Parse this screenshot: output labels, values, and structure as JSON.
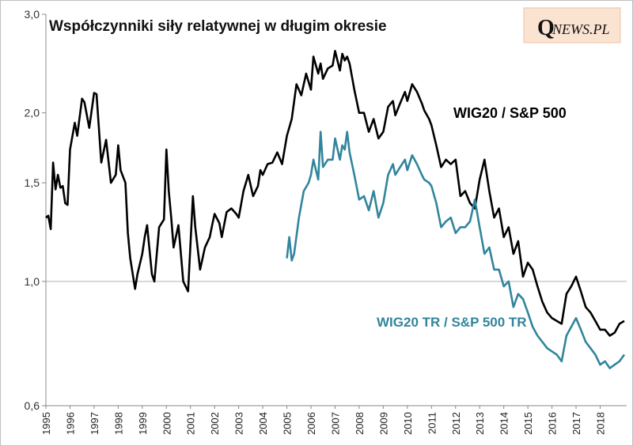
{
  "chart_data": {
    "type": "line",
    "title": "Współczynniki siły relatywnej w długim okresie",
    "xlabel": "",
    "ylabel": "",
    "y_scale": "log",
    "ylim": [
      0.6,
      3.0
    ],
    "xlim": [
      1995,
      2019.1
    ],
    "y_ticks": [
      {
        "value": 3.0,
        "label": "3,0"
      },
      {
        "value": 2.0,
        "label": "2,0"
      },
      {
        "value": 1.5,
        "label": "1,5"
      },
      {
        "value": 1.0,
        "label": "1,0"
      },
      {
        "value": 0.6,
        "label": "0,6"
      }
    ],
    "x_ticks": [
      "1995",
      "1996",
      "1997",
      "1998",
      "1999",
      "2000",
      "2001",
      "2002",
      "2003",
      "2004",
      "2005",
      "2006",
      "2007",
      "2008",
      "2009",
      "2010",
      "2011",
      "2012",
      "2013",
      "2014",
      "2015",
      "2016",
      "2017",
      "2018"
    ],
    "gridlines": [
      1.0
    ],
    "series": [
      {
        "name": "WIG20 / S&P 500",
        "color": "#000000",
        "x": [
          1995.0,
          1995.1,
          1995.2,
          1995.3,
          1995.4,
          1995.5,
          1995.6,
          1995.7,
          1995.8,
          1995.9,
          1996.0,
          1996.2,
          1996.3,
          1996.5,
          1996.6,
          1996.8,
          1997.0,
          1997.1,
          1997.3,
          1997.5,
          1997.7,
          1997.9,
          1998.0,
          1998.1,
          1998.3,
          1998.4,
          1998.5,
          1998.7,
          1998.8,
          1999.0,
          1999.1,
          1999.2,
          1999.4,
          1999.5,
          1999.7,
          1999.9,
          2000.0,
          2000.1,
          2000.2,
          2000.3,
          2000.5,
          2000.7,
          2000.9,
          2001.1,
          2001.2,
          2001.4,
          2001.6,
          2001.8,
          2001.9,
          2002.0,
          2002.2,
          2002.3,
          2002.5,
          2002.7,
          2002.9,
          2003.0,
          2003.2,
          2003.4,
          2003.6,
          2003.8,
          2003.9,
          2004.0,
          2004.2,
          2004.4,
          2004.6,
          2004.8,
          2005.0,
          2005.2,
          2005.4,
          2005.6,
          2005.8,
          2006.0,
          2006.1,
          2006.3,
          2006.4,
          2006.5,
          2006.7,
          2006.9,
          2007.0,
          2007.2,
          2007.3,
          2007.4,
          2007.5,
          2007.6,
          2007.8,
          2008.0,
          2008.2,
          2008.4,
          2008.6,
          2008.8,
          2009.0,
          2009.2,
          2009.4,
          2009.5,
          2009.7,
          2009.9,
          2010.0,
          2010.2,
          2010.4,
          2010.6,
          2010.7,
          2010.9,
          2011.0,
          2011.2,
          2011.4,
          2011.6,
          2011.8,
          2012.0,
          2012.2,
          2012.4,
          2012.6,
          2012.8,
          2013.0,
          2013.2,
          2013.4,
          2013.6,
          2013.8,
          2014.0,
          2014.2,
          2014.4,
          2014.6,
          2014.8,
          2015.0,
          2015.2,
          2015.4,
          2015.6,
          2015.8,
          2016.0,
          2016.2,
          2016.4,
          2016.6,
          2016.8,
          2017.0,
          2017.2,
          2017.4,
          2017.6,
          2017.8,
          2018.0,
          2018.2,
          2018.4,
          2018.6,
          2018.8,
          2019.0
        ],
        "values": [
          1.3,
          1.31,
          1.24,
          1.63,
          1.46,
          1.55,
          1.47,
          1.48,
          1.38,
          1.37,
          1.72,
          1.92,
          1.82,
          2.12,
          2.09,
          1.88,
          2.17,
          2.16,
          1.63,
          1.79,
          1.5,
          1.55,
          1.75,
          1.58,
          1.5,
          1.22,
          1.1,
          0.97,
          1.03,
          1.12,
          1.2,
          1.26,
          1.03,
          1.0,
          1.25,
          1.29,
          1.72,
          1.45,
          1.3,
          1.15,
          1.26,
          1.0,
          0.96,
          1.42,
          1.25,
          1.05,
          1.15,
          1.2,
          1.26,
          1.32,
          1.27,
          1.2,
          1.33,
          1.35,
          1.32,
          1.3,
          1.45,
          1.55,
          1.42,
          1.48,
          1.58,
          1.55,
          1.62,
          1.63,
          1.7,
          1.62,
          1.82,
          1.95,
          2.25,
          2.15,
          2.35,
          2.2,
          2.52,
          2.35,
          2.45,
          2.3,
          2.4,
          2.43,
          2.58,
          2.38,
          2.55,
          2.48,
          2.52,
          2.45,
          2.2,
          2.0,
          2.0,
          1.85,
          1.95,
          1.8,
          1.85,
          2.05,
          2.1,
          1.98,
          2.08,
          2.18,
          2.1,
          2.25,
          2.18,
          2.08,
          2.02,
          1.95,
          1.9,
          1.75,
          1.6,
          1.65,
          1.62,
          1.65,
          1.42,
          1.45,
          1.38,
          1.35,
          1.52,
          1.65,
          1.45,
          1.3,
          1.35,
          1.2,
          1.25,
          1.12,
          1.18,
          1.02,
          1.08,
          1.05,
          0.98,
          0.92,
          0.88,
          0.86,
          0.85,
          0.84,
          0.95,
          0.98,
          1.02,
          0.96,
          0.9,
          0.88,
          0.85,
          0.82,
          0.82,
          0.8,
          0.81,
          0.84,
          0.85
        ],
        "label": "WIG20 / S&P 500"
      },
      {
        "name": "WIG20 TR / S&P 500 TR",
        "color": "#31859c",
        "x": [
          2005.0,
          2005.1,
          2005.2,
          2005.3,
          2005.5,
          2005.7,
          2005.9,
          2006.0,
          2006.1,
          2006.3,
          2006.4,
          2006.5,
          2006.7,
          2006.9,
          2007.0,
          2007.2,
          2007.3,
          2007.4,
          2007.5,
          2007.6,
          2007.8,
          2008.0,
          2008.2,
          2008.4,
          2008.6,
          2008.8,
          2009.0,
          2009.2,
          2009.4,
          2009.5,
          2009.7,
          2009.9,
          2010.0,
          2010.2,
          2010.4,
          2010.6,
          2010.7,
          2010.9,
          2011.0,
          2011.2,
          2011.4,
          2011.6,
          2011.8,
          2012.0,
          2012.2,
          2012.4,
          2012.6,
          2012.8,
          2013.0,
          2013.2,
          2013.4,
          2013.6,
          2013.8,
          2014.0,
          2014.2,
          2014.4,
          2014.6,
          2014.8,
          2015.0,
          2015.2,
          2015.4,
          2015.6,
          2015.8,
          2016.0,
          2016.2,
          2016.4,
          2016.6,
          2016.8,
          2017.0,
          2017.2,
          2017.4,
          2017.6,
          2017.8,
          2018.0,
          2018.2,
          2018.4,
          2018.6,
          2018.8,
          2019.0
        ],
        "values": [
          1.1,
          1.2,
          1.09,
          1.12,
          1.3,
          1.45,
          1.5,
          1.55,
          1.65,
          1.52,
          1.85,
          1.6,
          1.65,
          1.65,
          1.8,
          1.65,
          1.75,
          1.72,
          1.85,
          1.7,
          1.55,
          1.4,
          1.42,
          1.34,
          1.45,
          1.3,
          1.38,
          1.55,
          1.62,
          1.55,
          1.6,
          1.65,
          1.58,
          1.68,
          1.62,
          1.55,
          1.52,
          1.5,
          1.48,
          1.38,
          1.25,
          1.28,
          1.3,
          1.22,
          1.25,
          1.25,
          1.28,
          1.4,
          1.25,
          1.12,
          1.15,
          1.05,
          1.05,
          0.98,
          1.0,
          0.9,
          0.95,
          0.93,
          0.88,
          0.83,
          0.8,
          0.78,
          0.76,
          0.75,
          0.74,
          0.72,
          0.8,
          0.83,
          0.86,
          0.82,
          0.78,
          0.76,
          0.74,
          0.71,
          0.72,
          0.7,
          0.71,
          0.72,
          0.74
        ],
        "label": "WIG20 TR / S&P 500 TR"
      }
    ]
  },
  "brand": {
    "q": "Q",
    "rest": "NEWS.PL"
  }
}
